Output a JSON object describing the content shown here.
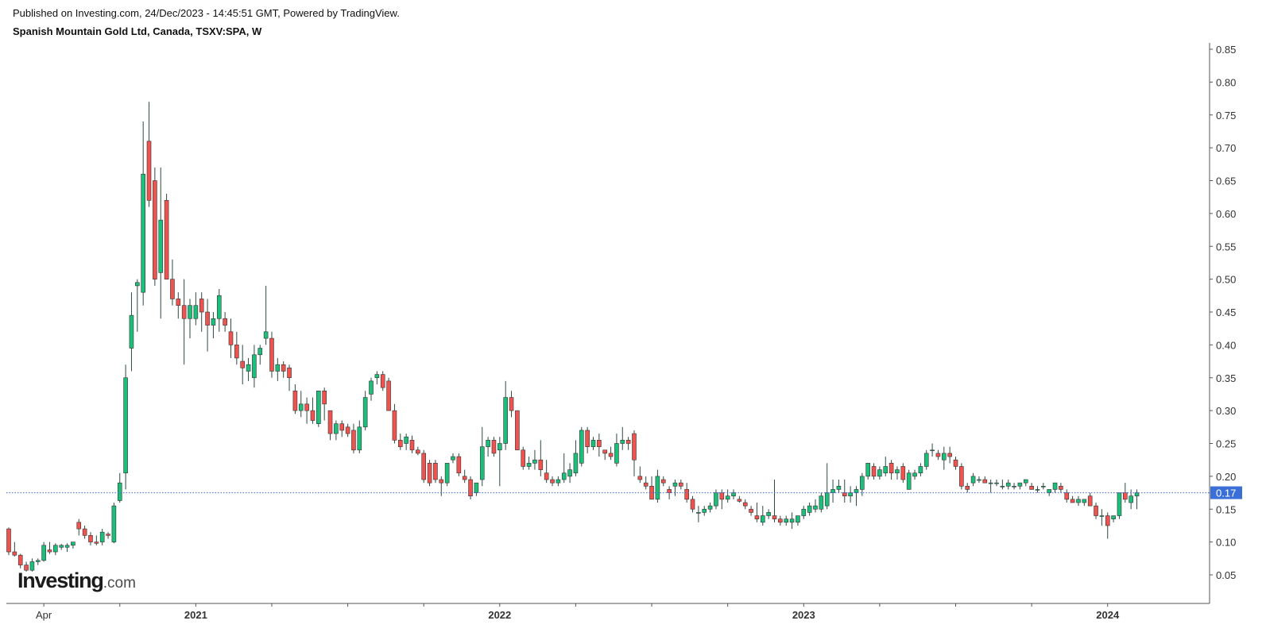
{
  "header": {
    "published": "Published on Investing.com, 24/Dec/2023 - 14:45:51 GMT, Powered by TradingView.",
    "title": "Spanish Mountain Gold Ltd, Canada, TSXV:SPA, W"
  },
  "logo": {
    "main": "Investing",
    "suffix": ".com"
  },
  "colors": {
    "up": "#1bbf7a",
    "down": "#ef5350",
    "wick": "#2e4a3e",
    "axis": "#555555",
    "last": "#3b6fd8",
    "price_line": "#4169e1"
  },
  "chart_data": {
    "type": "candlestick",
    "title": "Spanish Mountain Gold Ltd, Canada, TSXV:SPA, W",
    "interval": "W",
    "y_axis": {
      "position": "right",
      "ylim": [
        0.0,
        0.86
      ],
      "ticks": [
        "0.85",
        "0.80",
        "0.75",
        "0.70",
        "0.65",
        "0.60",
        "0.55",
        "0.50",
        "0.45",
        "0.40",
        "0.35",
        "0.30",
        "0.25",
        "0.20",
        "0.15",
        "0.10",
        "0.05"
      ]
    },
    "x_axis": {
      "labels": [
        {
          "week": 6,
          "text": "Apr",
          "bold": false
        },
        {
          "week": 32,
          "text": "2021",
          "bold": true
        },
        {
          "week": 84,
          "text": "2022",
          "bold": true
        },
        {
          "week": 136,
          "text": "2023",
          "bold": true
        },
        {
          "week": 188,
          "text": "2024",
          "bold": true
        }
      ],
      "minor_ticks": [
        19,
        45,
        58,
        71,
        97,
        110,
        123,
        149,
        162,
        175
      ]
    },
    "last_price": {
      "value": 0.175,
      "label": "0.17"
    },
    "candles": [
      [
        0.12,
        0.122,
        0.08,
        0.085
      ],
      [
        0.085,
        0.1,
        0.078,
        0.08
      ],
      [
        0.08,
        0.082,
        0.06,
        0.065
      ],
      [
        0.065,
        0.07,
        0.055,
        0.057
      ],
      [
        0.057,
        0.075,
        0.055,
        0.07
      ],
      [
        0.07,
        0.075,
        0.065,
        0.072
      ],
      [
        0.072,
        0.1,
        0.07,
        0.095
      ],
      [
        0.088,
        0.1,
        0.082,
        0.085
      ],
      [
        0.085,
        0.098,
        0.08,
        0.095
      ],
      [
        0.092,
        0.097,
        0.088,
        0.095
      ],
      [
        0.092,
        0.098,
        0.085,
        0.095
      ],
      [
        0.095,
        0.1,
        0.09,
        0.1
      ],
      [
        0.13,
        0.135,
        0.11,
        0.12
      ],
      [
        0.12,
        0.125,
        0.105,
        0.11
      ],
      [
        0.11,
        0.115,
        0.095,
        0.1
      ],
      [
        0.1,
        0.11,
        0.095,
        0.098
      ],
      [
        0.1,
        0.12,
        0.095,
        0.115
      ],
      [
        0.112,
        0.115,
        0.105,
        0.11
      ],
      [
        0.1,
        0.16,
        0.098,
        0.155
      ],
      [
        0.163,
        0.205,
        0.16,
        0.19
      ],
      [
        0.205,
        0.37,
        0.18,
        0.35
      ],
      [
        0.395,
        0.48,
        0.36,
        0.445
      ],
      [
        0.49,
        0.5,
        0.42,
        0.495
      ],
      [
        0.48,
        0.74,
        0.46,
        0.66
      ],
      [
        0.71,
        0.77,
        0.61,
        0.62
      ],
      [
        0.65,
        0.67,
        0.49,
        0.5
      ],
      [
        0.51,
        0.67,
        0.44,
        0.59
      ],
      [
        0.62,
        0.63,
        0.5,
        0.5
      ],
      [
        0.5,
        0.53,
        0.46,
        0.47
      ],
      [
        0.47,
        0.48,
        0.44,
        0.46
      ],
      [
        0.46,
        0.5,
        0.37,
        0.44
      ],
      [
        0.44,
        0.47,
        0.41,
        0.46
      ],
      [
        0.44,
        0.48,
        0.43,
        0.46
      ],
      [
        0.47,
        0.48,
        0.42,
        0.45
      ],
      [
        0.45,
        0.47,
        0.39,
        0.43
      ],
      [
        0.43,
        0.45,
        0.41,
        0.44
      ],
      [
        0.44,
        0.485,
        0.42,
        0.475
      ],
      [
        0.44,
        0.45,
        0.42,
        0.43
      ],
      [
        0.42,
        0.44,
        0.38,
        0.4
      ],
      [
        0.4,
        0.42,
        0.37,
        0.38
      ],
      [
        0.375,
        0.4,
        0.34,
        0.365
      ],
      [
        0.36,
        0.38,
        0.345,
        0.37
      ],
      [
        0.35,
        0.4,
        0.335,
        0.385
      ],
      [
        0.385,
        0.4,
        0.37,
        0.395
      ],
      [
        0.41,
        0.49,
        0.4,
        0.42
      ],
      [
        0.41,
        0.42,
        0.35,
        0.36
      ],
      [
        0.36,
        0.38,
        0.345,
        0.37
      ],
      [
        0.37,
        0.375,
        0.35,
        0.36
      ],
      [
        0.365,
        0.37,
        0.33,
        0.35
      ],
      [
        0.33,
        0.34,
        0.295,
        0.3
      ],
      [
        0.3,
        0.33,
        0.29,
        0.31
      ],
      [
        0.31,
        0.32,
        0.28,
        0.3
      ],
      [
        0.3,
        0.32,
        0.28,
        0.285
      ],
      [
        0.28,
        0.33,
        0.275,
        0.33
      ],
      [
        0.33,
        0.335,
        0.285,
        0.31
      ],
      [
        0.3,
        0.3,
        0.255,
        0.265
      ],
      [
        0.265,
        0.285,
        0.255,
        0.28
      ],
      [
        0.28,
        0.285,
        0.26,
        0.27
      ],
      [
        0.275,
        0.28,
        0.26,
        0.265
      ],
      [
        0.27,
        0.28,
        0.235,
        0.24
      ],
      [
        0.24,
        0.285,
        0.235,
        0.275
      ],
      [
        0.275,
        0.33,
        0.27,
        0.32
      ],
      [
        0.325,
        0.35,
        0.315,
        0.345
      ],
      [
        0.35,
        0.36,
        0.34,
        0.355
      ],
      [
        0.355,
        0.36,
        0.33,
        0.335
      ],
      [
        0.345,
        0.35,
        0.3,
        0.3
      ],
      [
        0.3,
        0.31,
        0.25,
        0.255
      ],
      [
        0.255,
        0.265,
        0.24,
        0.245
      ],
      [
        0.25,
        0.265,
        0.24,
        0.26
      ],
      [
        0.255,
        0.262,
        0.235,
        0.24
      ],
      [
        0.24,
        0.245,
        0.232,
        0.235
      ],
      [
        0.235,
        0.24,
        0.19,
        0.195
      ],
      [
        0.22,
        0.225,
        0.185,
        0.19
      ],
      [
        0.22,
        0.225,
        0.19,
        0.195
      ],
      [
        0.195,
        0.2,
        0.17,
        0.19
      ],
      [
        0.19,
        0.22,
        0.185,
        0.22
      ],
      [
        0.225,
        0.235,
        0.22,
        0.23
      ],
      [
        0.23,
        0.235,
        0.2,
        0.205
      ],
      [
        0.2,
        0.21,
        0.19,
        0.195
      ],
      [
        0.195,
        0.2,
        0.165,
        0.17
      ],
      [
        0.175,
        0.19,
        0.17,
        0.19
      ],
      [
        0.195,
        0.275,
        0.185,
        0.245
      ],
      [
        0.245,
        0.26,
        0.23,
        0.255
      ],
      [
        0.255,
        0.26,
        0.23,
        0.235
      ],
      [
        0.24,
        0.26,
        0.185,
        0.25
      ],
      [
        0.25,
        0.345,
        0.24,
        0.32
      ],
      [
        0.32,
        0.33,
        0.29,
        0.3
      ],
      [
        0.3,
        0.3,
        0.24,
        0.24
      ],
      [
        0.24,
        0.245,
        0.21,
        0.215
      ],
      [
        0.215,
        0.23,
        0.21,
        0.22
      ],
      [
        0.22,
        0.24,
        0.21,
        0.225
      ],
      [
        0.225,
        0.255,
        0.2,
        0.21
      ],
      [
        0.205,
        0.225,
        0.19,
        0.195
      ],
      [
        0.195,
        0.2,
        0.185,
        0.19
      ],
      [
        0.19,
        0.2,
        0.185,
        0.195
      ],
      [
        0.195,
        0.235,
        0.19,
        0.205
      ],
      [
        0.2,
        0.22,
        0.19,
        0.21
      ],
      [
        0.205,
        0.255,
        0.2,
        0.235
      ],
      [
        0.22,
        0.275,
        0.215,
        0.27
      ],
      [
        0.27,
        0.275,
        0.235,
        0.245
      ],
      [
        0.245,
        0.26,
        0.24,
        0.255
      ],
      [
        0.255,
        0.265,
        0.23,
        0.245
      ],
      [
        0.24,
        0.24,
        0.225,
        0.235
      ],
      [
        0.235,
        0.245,
        0.225,
        0.23
      ],
      [
        0.22,
        0.265,
        0.215,
        0.25
      ],
      [
        0.25,
        0.275,
        0.24,
        0.255
      ],
      [
        0.255,
        0.26,
        0.24,
        0.25
      ],
      [
        0.265,
        0.27,
        0.2,
        0.225
      ],
      [
        0.2,
        0.215,
        0.19,
        0.195
      ],
      [
        0.19,
        0.2,
        0.18,
        0.185
      ],
      [
        0.185,
        0.2,
        0.165,
        0.165
      ],
      [
        0.165,
        0.21,
        0.16,
        0.2
      ],
      [
        0.195,
        0.2,
        0.185,
        0.19
      ],
      [
        0.18,
        0.185,
        0.165,
        0.175
      ],
      [
        0.185,
        0.195,
        0.17,
        0.19
      ],
      [
        0.19,
        0.195,
        0.18,
        0.185
      ],
      [
        0.18,
        0.19,
        0.16,
        0.165
      ],
      [
        0.165,
        0.17,
        0.145,
        0.15
      ],
      [
        0.145,
        0.155,
        0.13,
        0.145
      ],
      [
        0.145,
        0.155,
        0.14,
        0.15
      ],
      [
        0.15,
        0.16,
        0.145,
        0.155
      ],
      [
        0.155,
        0.18,
        0.15,
        0.175
      ],
      [
        0.175,
        0.18,
        0.15,
        0.165
      ],
      [
        0.165,
        0.18,
        0.16,
        0.17
      ],
      [
        0.17,
        0.18,
        0.165,
        0.175
      ],
      [
        0.165,
        0.17,
        0.16,
        0.162
      ],
      [
        0.16,
        0.165,
        0.15,
        0.155
      ],
      [
        0.15,
        0.155,
        0.14,
        0.145
      ],
      [
        0.14,
        0.16,
        0.13,
        0.135
      ],
      [
        0.13,
        0.155,
        0.125,
        0.14
      ],
      [
        0.14,
        0.15,
        0.135,
        0.145
      ],
      [
        0.14,
        0.195,
        0.13,
        0.135
      ],
      [
        0.135,
        0.14,
        0.125,
        0.13
      ],
      [
        0.13,
        0.14,
        0.125,
        0.135
      ],
      [
        0.13,
        0.145,
        0.12,
        0.135
      ],
      [
        0.13,
        0.14,
        0.125,
        0.14
      ],
      [
        0.14,
        0.155,
        0.135,
        0.15
      ],
      [
        0.145,
        0.16,
        0.14,
        0.155
      ],
      [
        0.15,
        0.165,
        0.145,
        0.155
      ],
      [
        0.15,
        0.175,
        0.145,
        0.17
      ],
      [
        0.155,
        0.22,
        0.15,
        0.175
      ],
      [
        0.175,
        0.195,
        0.16,
        0.18
      ],
      [
        0.18,
        0.195,
        0.175,
        0.185
      ],
      [
        0.175,
        0.195,
        0.16,
        0.17
      ],
      [
        0.17,
        0.185,
        0.16,
        0.175
      ],
      [
        0.175,
        0.185,
        0.155,
        0.18
      ],
      [
        0.18,
        0.205,
        0.17,
        0.2
      ],
      [
        0.2,
        0.22,
        0.195,
        0.22
      ],
      [
        0.215,
        0.22,
        0.195,
        0.2
      ],
      [
        0.2,
        0.215,
        0.195,
        0.21
      ],
      [
        0.205,
        0.23,
        0.2,
        0.215
      ],
      [
        0.22,
        0.225,
        0.195,
        0.205
      ],
      [
        0.205,
        0.215,
        0.195,
        0.21
      ],
      [
        0.215,
        0.22,
        0.19,
        0.195
      ],
      [
        0.18,
        0.21,
        0.18,
        0.205
      ],
      [
        0.2,
        0.21,
        0.195,
        0.205
      ],
      [
        0.205,
        0.22,
        0.2,
        0.215
      ],
      [
        0.215,
        0.24,
        0.21,
        0.235
      ],
      [
        0.24,
        0.25,
        0.23,
        0.24
      ],
      [
        0.235,
        0.24,
        0.225,
        0.23
      ],
      [
        0.225,
        0.245,
        0.21,
        0.235
      ],
      [
        0.235,
        0.245,
        0.22,
        0.23
      ],
      [
        0.225,
        0.23,
        0.21,
        0.215
      ],
      [
        0.215,
        0.22,
        0.18,
        0.185
      ],
      [
        0.185,
        0.19,
        0.175,
        0.18
      ],
      [
        0.19,
        0.205,
        0.185,
        0.2
      ],
      [
        0.195,
        0.2,
        0.19,
        0.195
      ],
      [
        0.195,
        0.2,
        0.19,
        0.19
      ],
      [
        0.19,
        0.195,
        0.175,
        0.19
      ],
      [
        0.19,
        0.195,
        0.185,
        0.19
      ],
      [
        0.185,
        0.195,
        0.18,
        0.185
      ],
      [
        0.185,
        0.195,
        0.18,
        0.19
      ],
      [
        0.185,
        0.19,
        0.18,
        0.185
      ],
      [
        0.185,
        0.19,
        0.18,
        0.19
      ],
      [
        0.19,
        0.195,
        0.185,
        0.195
      ],
      [
        0.185,
        0.19,
        0.18,
        0.18
      ],
      [
        0.18,
        0.185,
        0.175,
        0.18
      ],
      [
        0.185,
        0.19,
        0.18,
        0.185
      ],
      [
        0.175,
        0.18,
        0.17,
        0.18
      ],
      [
        0.18,
        0.19,
        0.175,
        0.19
      ],
      [
        0.185,
        0.19,
        0.175,
        0.18
      ],
      [
        0.175,
        0.18,
        0.16,
        0.165
      ],
      [
        0.165,
        0.17,
        0.16,
        0.16
      ],
      [
        0.16,
        0.17,
        0.155,
        0.165
      ],
      [
        0.16,
        0.165,
        0.155,
        0.165
      ],
      [
        0.17,
        0.175,
        0.155,
        0.155
      ],
      [
        0.155,
        0.16,
        0.135,
        0.14
      ],
      [
        0.14,
        0.15,
        0.125,
        0.14
      ],
      [
        0.14,
        0.145,
        0.105,
        0.125
      ],
      [
        0.135,
        0.14,
        0.13,
        0.14
      ],
      [
        0.14,
        0.175,
        0.135,
        0.175
      ],
      [
        0.175,
        0.19,
        0.16,
        0.165
      ],
      [
        0.16,
        0.18,
        0.15,
        0.17
      ],
      [
        0.17,
        0.18,
        0.15,
        0.175
      ]
    ]
  }
}
